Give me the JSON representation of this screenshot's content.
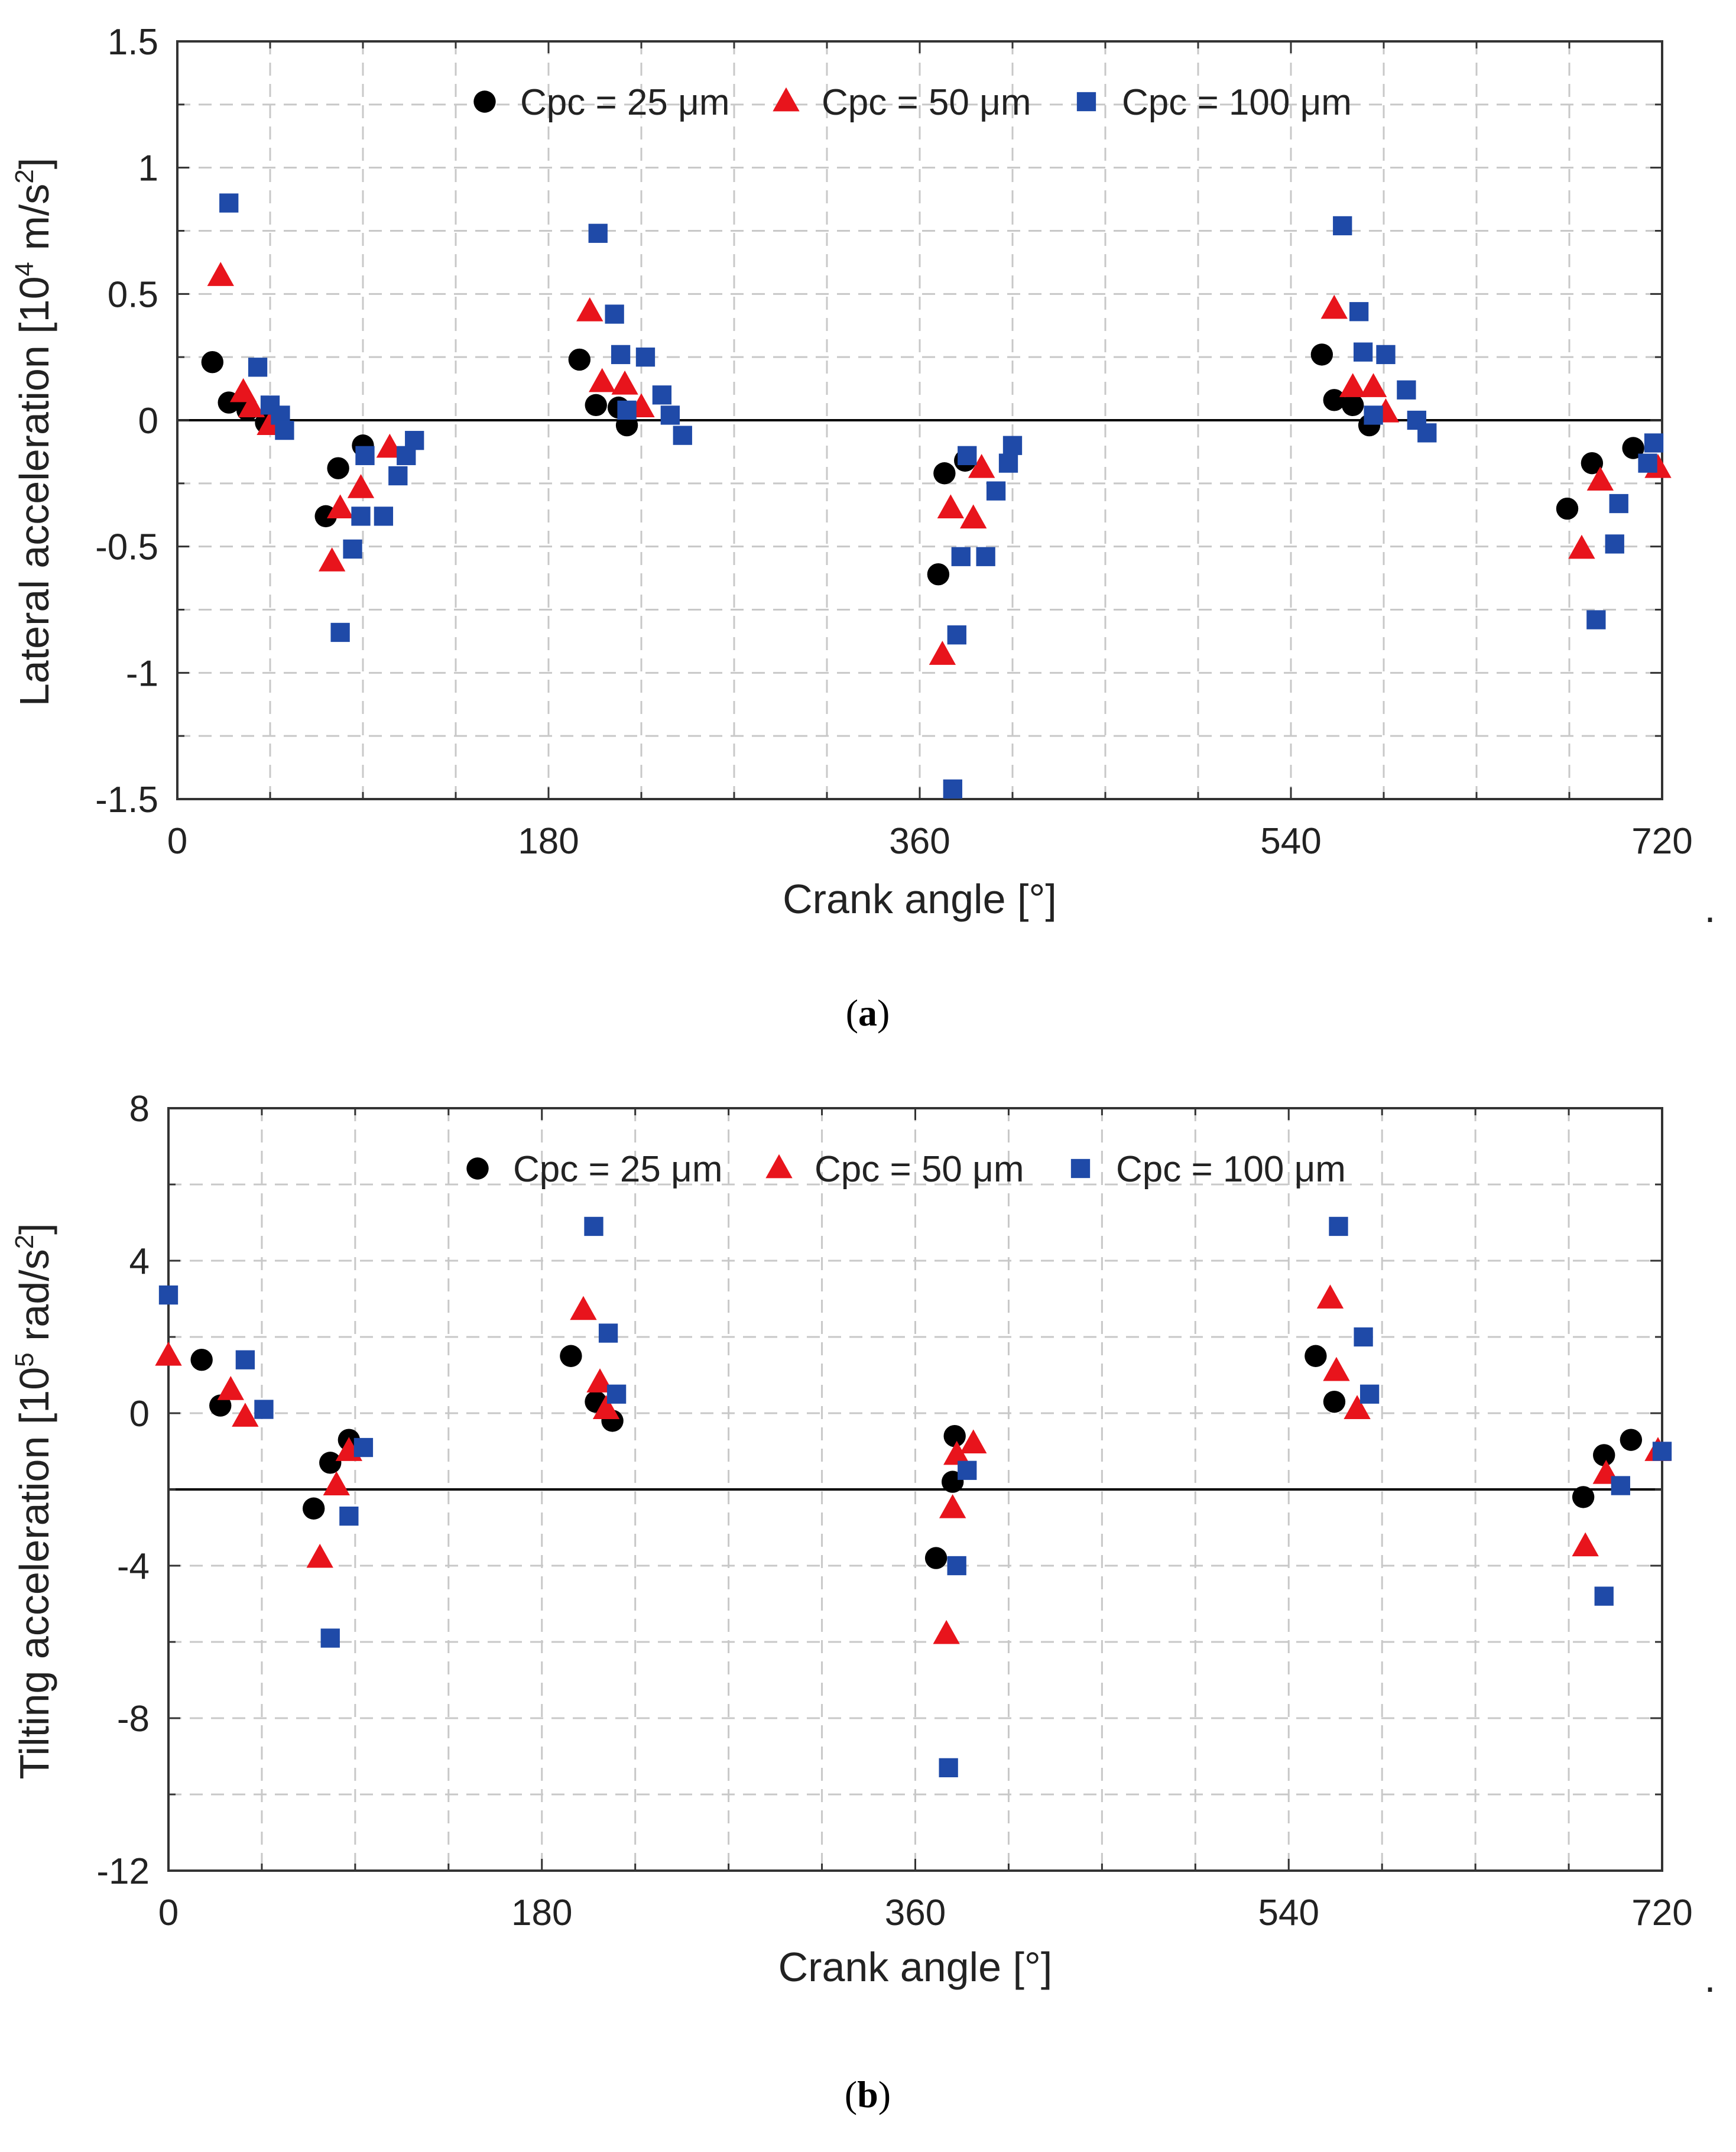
{
  "chart_data": [
    {
      "type": "scatter",
      "panel_label": "a",
      "xlabel": "Crank angle [°]",
      "ylabel_main": "Lateral acceleration [10",
      "ylabel_sup": "4",
      "ylabel_tail": " m/s",
      "ylabel_sup2": "2",
      "ylabel_end": "]",
      "xlim": [
        0,
        720
      ],
      "ylim": [
        -1.5,
        1.5
      ],
      "xticks": [
        0,
        180,
        360,
        540,
        720
      ],
      "xtick_labels": [
        "0",
        "180",
        "360",
        "540",
        "720"
      ],
      "yticks": [
        1.5,
        1,
        0.5,
        0,
        -0.5,
        -1,
        -1.5
      ],
      "ytick_labels": [
        "1.5",
        "1",
        "0.5",
        "0",
        "-0.5",
        "-1",
        "-1.5"
      ],
      "reference_line_y": 0,
      "trailing_mark": ".",
      "grid": true,
      "legend_position": "top-center",
      "series": [
        {
          "name": "Cpc = 25 μm",
          "marker": "circle",
          "color": "#000000",
          "points": [
            [
              17,
              0.23
            ],
            [
              25,
              0.07
            ],
            [
              34,
              0.04
            ],
            [
              43,
              -0.01
            ],
            [
              72,
              -0.38
            ],
            [
              78,
              -0.19
            ],
            [
              90,
              -0.1
            ],
            [
              195,
              0.24
            ],
            [
              203,
              0.06
            ],
            [
              214,
              0.05
            ],
            [
              218,
              -0.02
            ],
            [
              369,
              -0.61
            ],
            [
              372,
              -0.21
            ],
            [
              382,
              -0.16
            ],
            [
              555,
              0.26
            ],
            [
              561,
              0.08
            ],
            [
              570,
              0.06
            ],
            [
              578,
              -0.02
            ],
            [
              674,
              -0.35
            ],
            [
              686,
              -0.17
            ],
            [
              706,
              -0.11
            ]
          ]
        },
        {
          "name": "Cpc = 50 μm",
          "marker": "triangle",
          "color": "#e8141c",
          "points": [
            [
              21,
              0.57
            ],
            [
              32,
              0.11
            ],
            [
              36,
              0.05
            ],
            [
              45,
              -0.02
            ],
            [
              75,
              -0.56
            ],
            [
              79,
              -0.35
            ],
            [
              89,
              -0.27
            ],
            [
              103,
              -0.11
            ],
            [
              200,
              0.43
            ],
            [
              206,
              0.15
            ],
            [
              217,
              0.14
            ],
            [
              225,
              0.05
            ],
            [
              371,
              -0.93
            ],
            [
              375,
              -0.35
            ],
            [
              386,
              -0.39
            ],
            [
              390,
              -0.19
            ],
            [
              561,
              0.44
            ],
            [
              570,
              0.13
            ],
            [
              580,
              0.13
            ],
            [
              586,
              0.03
            ],
            [
              681,
              -0.51
            ],
            [
              690,
              -0.24
            ],
            [
              718,
              -0.19
            ]
          ]
        },
        {
          "name": "Cpc = 100 μm",
          "marker": "square",
          "color": "#1f4aa8",
          "points": [
            [
              25,
              0.86
            ],
            [
              39,
              0.21
            ],
            [
              45,
              0.06
            ],
            [
              50,
              0.02
            ],
            [
              52,
              -0.04
            ],
            [
              79,
              -0.84
            ],
            [
              85,
              -0.51
            ],
            [
              89,
              -0.38
            ],
            [
              91,
              -0.14
            ],
            [
              100,
              -0.38
            ],
            [
              107,
              -0.22
            ],
            [
              111,
              -0.14
            ],
            [
              115,
              -0.08
            ],
            [
              204,
              0.74
            ],
            [
              212,
              0.42
            ],
            [
              215,
              0.26
            ],
            [
              218,
              0.04
            ],
            [
              227,
              0.25
            ],
            [
              235,
              0.1
            ],
            [
              239,
              0.02
            ],
            [
              245,
              -0.06
            ],
            [
              376,
              -1.46
            ],
            [
              378,
              -0.85
            ],
            [
              380,
              -0.54
            ],
            [
              383,
              -0.14
            ],
            [
              392,
              -0.54
            ],
            [
              397,
              -0.28
            ],
            [
              403,
              -0.17
            ],
            [
              405,
              -0.1
            ],
            [
              565,
              0.77
            ],
            [
              573,
              0.43
            ],
            [
              575,
              0.27
            ],
            [
              580,
              0.02
            ],
            [
              586,
              0.26
            ],
            [
              596,
              0.12
            ],
            [
              601,
              0.0
            ],
            [
              606,
              -0.05
            ],
            [
              688,
              -0.79
            ],
            [
              697,
              -0.49
            ],
            [
              699,
              -0.33
            ],
            [
              713,
              -0.17
            ],
            [
              716,
              -0.09
            ]
          ]
        }
      ]
    },
    {
      "type": "scatter",
      "panel_label": "b",
      "xlabel": "Crank angle [°]",
      "ylabel_main": "Tilting acceleration [10",
      "ylabel_sup": "5",
      "ylabel_tail": " rad/s",
      "ylabel_sup2": "2",
      "ylabel_end": "]",
      "xlim": [
        0,
        720
      ],
      "ylim": [
        -12,
        8
      ],
      "xticks": [
        0,
        180,
        360,
        540,
        720
      ],
      "xtick_labels": [
        "0",
        "180",
        "360",
        "540",
        "720"
      ],
      "yticks": [
        8,
        4,
        0,
        -4,
        -8,
        -12
      ],
      "ytick_labels": [
        "8",
        "4",
        "0",
        "-4",
        "-8",
        "-12"
      ],
      "reference_line_y": -2,
      "trailing_mark": ".",
      "grid": true,
      "legend_position": "top-center",
      "series": [
        {
          "name": "Cpc = 25 μm",
          "marker": "circle",
          "color": "#000000",
          "points": [
            [
              16,
              1.4
            ],
            [
              25,
              0.2
            ],
            [
              70,
              -2.5
            ],
            [
              78,
              -1.3
            ],
            [
              87,
              -0.7
            ],
            [
              194,
              1.5
            ],
            [
              206,
              0.3
            ],
            [
              214,
              -0.2
            ],
            [
              370,
              -3.8
            ],
            [
              378,
              -1.8
            ],
            [
              379,
              -0.6
            ],
            [
              553,
              1.5
            ],
            [
              562,
              0.3
            ],
            [
              682,
              -2.2
            ],
            [
              692,
              -1.1
            ],
            [
              705,
              -0.7
            ]
          ]
        },
        {
          "name": "Cpc = 50 μm",
          "marker": "triangle",
          "color": "#e8141c",
          "points": [
            [
              0,
              1.5
            ],
            [
              30,
              0.6
            ],
            [
              37,
              -0.1
            ],
            [
              73,
              -3.8
            ],
            [
              81,
              -1.9
            ],
            [
              87,
              -1.0
            ],
            [
              200,
              2.7
            ],
            [
              208,
              0.8
            ],
            [
              211,
              0.1
            ],
            [
              375,
              -5.8
            ],
            [
              378,
              -2.5
            ],
            [
              380,
              -1.1
            ],
            [
              388,
              -0.8
            ],
            [
              560,
              3.0
            ],
            [
              563,
              1.1
            ],
            [
              573,
              0.1
            ],
            [
              683,
              -3.5
            ],
            [
              693,
              -1.6
            ],
            [
              718,
              -1.0
            ]
          ]
        },
        {
          "name": "Cpc = 100 μm",
          "marker": "square",
          "color": "#1f4aa8",
          "points": [
            [
              0,
              3.1
            ],
            [
              37,
              1.4
            ],
            [
              46,
              0.1
            ],
            [
              78,
              -5.9
            ],
            [
              87,
              -2.7
            ],
            [
              94,
              -0.9
            ],
            [
              205,
              4.9
            ],
            [
              212,
              2.1
            ],
            [
              216,
              0.5
            ],
            [
              376,
              -9.3
            ],
            [
              380,
              -4.0
            ],
            [
              385,
              -1.5
            ],
            [
              564,
              4.9
            ],
            [
              576,
              2.0
            ],
            [
              579,
              0.5
            ],
            [
              692,
              -4.8
            ],
            [
              700,
              -1.9
            ],
            [
              720,
              -1.0
            ]
          ]
        }
      ]
    }
  ]
}
